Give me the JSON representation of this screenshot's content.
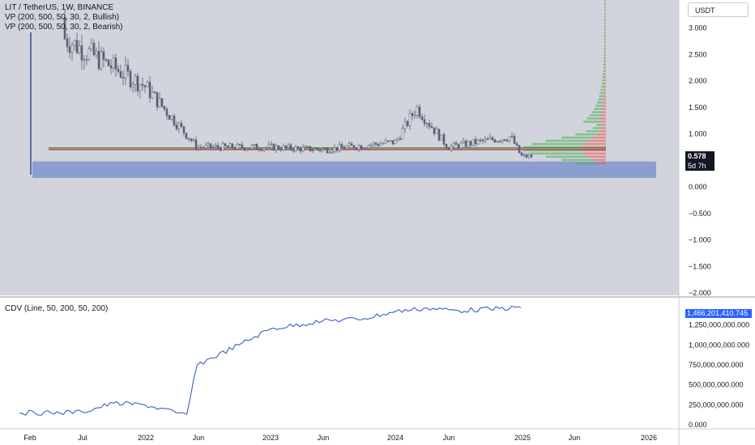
{
  "legend": {
    "symbol": "LIT / TetherUS, 1W, BINANCE",
    "vp_bullish": "VP (200, 500, 50, 30, 2, Bullish)",
    "vp_bearish": "VP (200, 500, 50, 30, 2, Bearish)",
    "cdv": "CDV (Line, 50, 200, 50, 200)"
  },
  "currency_button": "USDT",
  "last_price": "0.578",
  "countdown": "5d 7h",
  "cdv_value": "1,466,201,410.745",
  "price_axis_labels": [
    "3.000",
    "2.500",
    "2.000",
    "1.500",
    "1.000",
    "0.500",
    "0.000",
    "−0.500",
    "−1.000",
    "−1.500",
    "−2.000"
  ],
  "cdv_axis_labels": [
    "1,250,000,000.000",
    "1,000,000,000.000",
    "750,000,000.000",
    "500,000,000.000",
    "250,000,000.000",
    "0.000"
  ],
  "time_axis_labels": [
    "Feb",
    "Jul",
    "2022",
    "Jun",
    "2023",
    "Jun",
    "2024",
    "Jun",
    "2025",
    "Jun",
    "2026"
  ],
  "colors": {
    "candle": "#5b6378",
    "zone": "#8a9fcf",
    "vp_bull": "#4caf50",
    "vp_bear": "#ef5350",
    "cdv_line": "#2a4fc0",
    "poc_green": "#2e7d32",
    "poc_red": "#c62828"
  },
  "chart_data": [
    {
      "type": "candlestick",
      "symbol": "LIT / TetherUS",
      "interval": "1W",
      "exchange": "BINANCE",
      "currency": "USDT",
      "last_price": 0.578,
      "y_axis": {
        "min": -2.0,
        "max": 3.0,
        "step": 0.5
      },
      "x_axis": [
        "Feb",
        "Jul",
        "2022",
        "Jun",
        "2023",
        "Jun",
        "2024",
        "Jun",
        "2025",
        "Jun",
        "2026"
      ],
      "support_zone": [
        0.17,
        0.48
      ],
      "poc_level": 0.72,
      "approx_close_path": [
        {
          "x": "2021-02",
          "y": 3.2
        },
        {
          "x": "2021-07",
          "y": 2.6
        },
        {
          "x": "2022-01",
          "y": 1.9
        },
        {
          "x": "2022-06",
          "y": 0.75
        },
        {
          "x": "2023-01",
          "y": 0.75
        },
        {
          "x": "2023-06",
          "y": 0.7
        },
        {
          "x": "2024-01",
          "y": 0.85
        },
        {
          "x": "2024-03",
          "y": 1.5
        },
        {
          "x": "2024-06",
          "y": 0.75
        },
        {
          "x": "2024-12",
          "y": 0.95
        },
        {
          "x": "2025-01",
          "y": 0.578
        }
      ]
    },
    {
      "type": "line",
      "name": "CDV",
      "y_axis": {
        "min": 0,
        "max": 1500000000
      },
      "x": [
        "2021-01",
        "2021-04",
        "2021-07",
        "2021-10",
        "2022-01",
        "2022-04",
        "2022-05",
        "2022-06",
        "2022-10",
        "2023-01",
        "2023-06",
        "2023-10",
        "2024-01",
        "2024-04",
        "2024-07",
        "2024-10",
        "2025-01"
      ],
      "values": [
        150000000,
        150000000,
        160000000,
        270000000,
        250000000,
        150000000,
        130000000,
        750000000,
        1000000000,
        1200000000,
        1300000000,
        1330000000,
        1420000000,
        1460000000,
        1430000000,
        1450000000,
        1466201410
      ]
    }
  ]
}
